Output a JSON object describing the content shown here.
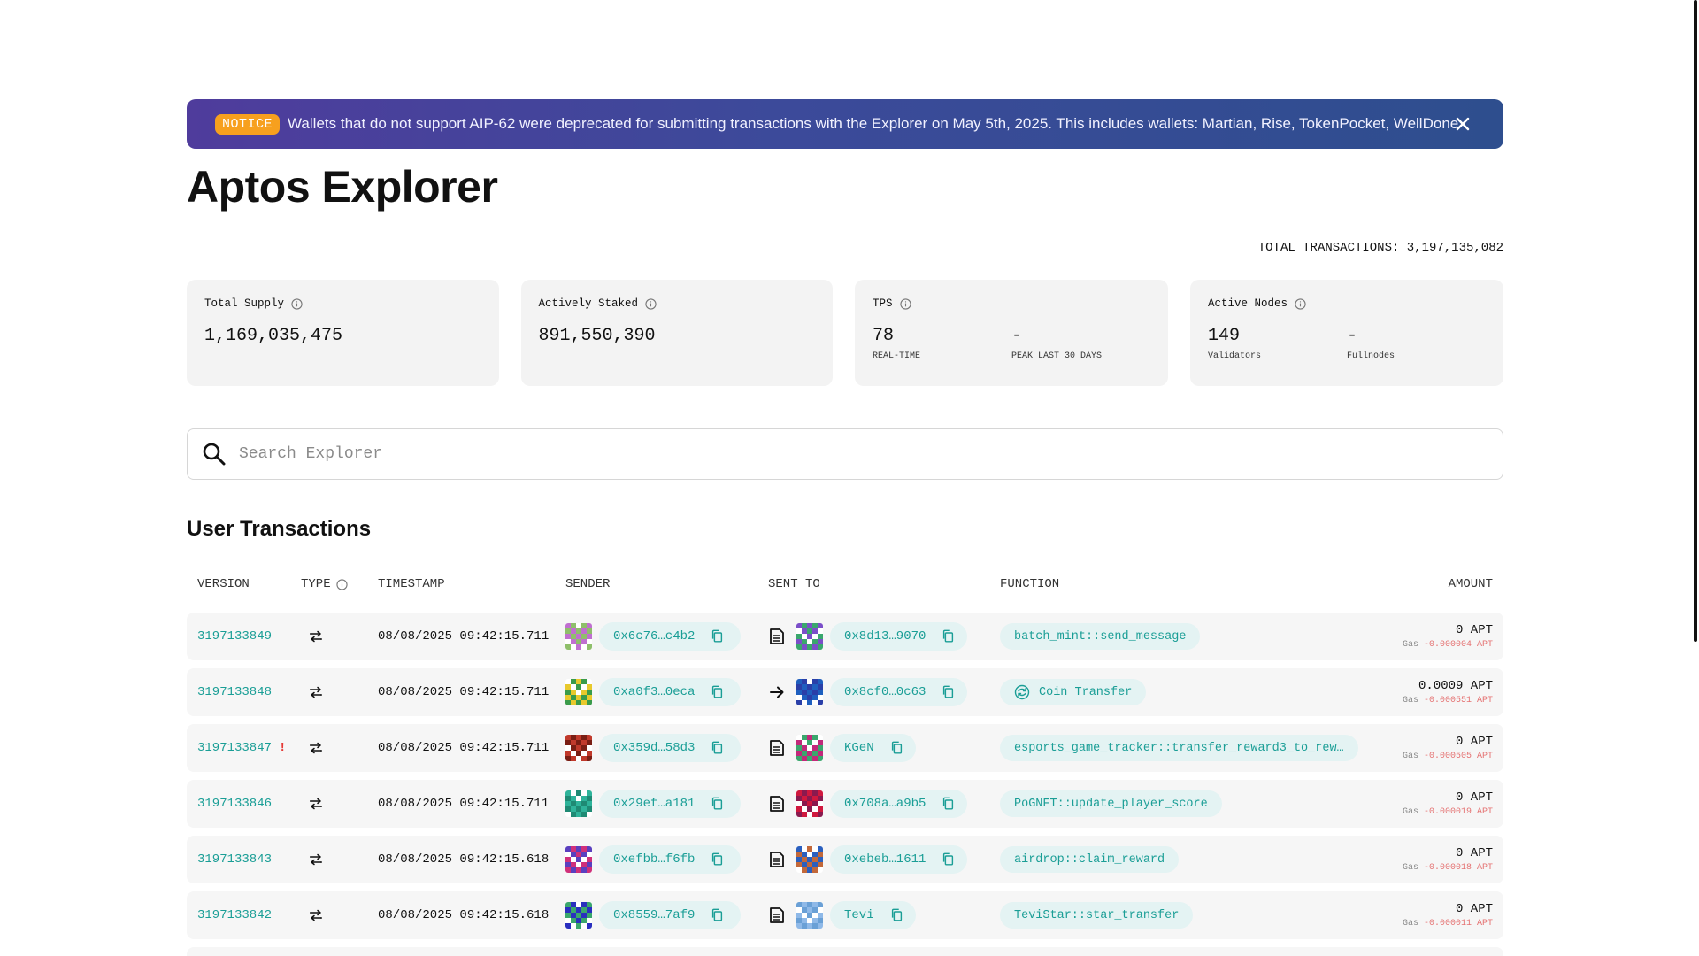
{
  "notice": {
    "badge": "NOTICE",
    "text": "Wallets that do not support AIP-62 were deprecated for submitting transactions with the Explorer on May 5th, 2025. This includes wallets: Martian, Rise, TokenPocket, WellDone",
    "close_icon": "close-icon"
  },
  "page_title": "Aptos Explorer",
  "total_transactions": "TOTAL TRANSACTIONS: 3,197,135,082",
  "stats": {
    "total_supply": {
      "label": "Total Supply",
      "value": "1,169,035,475"
    },
    "actively_staked": {
      "label": "Actively Staked",
      "value": "891,550,390"
    },
    "tps": {
      "label": "TPS",
      "realtime_value": "78",
      "realtime_label": "REAL-TIME",
      "peak_value": "-",
      "peak_label": "PEAK LAST 30 DAYS"
    },
    "active_nodes": {
      "label": "Active Nodes",
      "validators_value": "149",
      "validators_label": "Validators",
      "fullnodes_value": "-",
      "fullnodes_label": "Fullnodes"
    }
  },
  "search": {
    "placeholder": "Search Explorer",
    "icon": "search-icon"
  },
  "section_title": "User Transactions",
  "table": {
    "headers": {
      "version": "VERSION",
      "type": "TYPE",
      "timestamp": "TIMESTAMP",
      "sender": "SENDER",
      "sent_to": "SENT TO",
      "function": "FUNCTION",
      "amount": "AMOUNT"
    },
    "rows": [
      {
        "version": "3197133849",
        "failed": false,
        "timestamp": "08/08/2025 09:42:15.711",
        "sender": "0x6c76…c4b2",
        "sender_colors": [
          "#8fbf6a",
          "#c06fd0"
        ],
        "kind_icon": "document-icon",
        "sent_to": "0x8d13…9070",
        "sent_to_colors": [
          "#3aa76d",
          "#7b4fc9"
        ],
        "function": "batch_mint::send_message",
        "function_icon": "",
        "amount": "0 APT",
        "gas_label": "Gas",
        "gas": "-0.000004 APT"
      },
      {
        "version": "3197133848",
        "failed": false,
        "timestamp": "08/08/2025 09:42:15.711",
        "sender": "0xa0f3…0eca",
        "sender_colors": [
          "#e8c92c",
          "#3a9b4a"
        ],
        "kind_icon": "arrow-right-icon",
        "sent_to": "0x8cf0…0c63",
        "sent_to_colors": [
          "#2a3fa8",
          "#1f5fbf"
        ],
        "function": "Coin Transfer",
        "function_icon": "coin-transfer-icon",
        "amount": "0.0009 APT",
        "gas_label": "Gas",
        "gas": "-0.000551 APT"
      },
      {
        "version": "3197133847",
        "failed": true,
        "failed_mark": "!",
        "timestamp": "08/08/2025 09:42:15.711",
        "sender": "0x359d…58d3",
        "sender_colors": [
          "#c0392b",
          "#7a1e14"
        ],
        "kind_icon": "document-icon",
        "sent_to": "KGeN",
        "sent_to_colors": [
          "#c2287a",
          "#3aa76d"
        ],
        "function": "esports_game_tracker::transfer_reward3_to_rew…",
        "function_icon": "",
        "amount": "0 APT",
        "gas_label": "Gas",
        "gas": "-0.000505 APT"
      },
      {
        "version": "3197133846",
        "failed": false,
        "timestamp": "08/08/2025 09:42:15.711",
        "sender": "0x29ef…a181",
        "sender_colors": [
          "#2fb39a",
          "#1f8a74"
        ],
        "kind_icon": "document-icon",
        "sent_to": "0x708a…a9b5",
        "sent_to_colors": [
          "#d0183e",
          "#8a1a4f"
        ],
        "function": "PoGNFT::update_player_score",
        "function_icon": "",
        "amount": "0 APT",
        "gas_label": "Gas",
        "gas": "-0.000019 APT"
      },
      {
        "version": "3197133843",
        "failed": false,
        "timestamp": "08/08/2025 09:42:15.618",
        "sender": "0xefbb…f6fb",
        "sender_colors": [
          "#d0307a",
          "#5a3fbf"
        ],
        "kind_icon": "document-icon",
        "sent_to": "0xebeb…1611",
        "sent_to_colors": [
          "#2a5fbf",
          "#c2683a"
        ],
        "function": "airdrop::claim_reward",
        "function_icon": "",
        "amount": "0 APT",
        "gas_label": "Gas",
        "gas": "-0.000018 APT"
      },
      {
        "version": "3197133842",
        "failed": false,
        "timestamp": "08/08/2025 09:42:15.618",
        "sender": "0x8559…7af9",
        "sender_colors": [
          "#2a2fbf",
          "#3aa76d"
        ],
        "kind_icon": "document-icon",
        "sent_to": "Tevi",
        "sent_to_colors": [
          "#8fb9e8",
          "#6aa0d6"
        ],
        "function": "TeviStar::star_transfer",
        "function_icon": "",
        "amount": "0 APT",
        "gas_label": "Gas",
        "gas": "-0.000011 APT"
      }
    ]
  },
  "colors": {
    "accent": "#1a9e96",
    "notice_badge": "#f7a01e",
    "gas_negative": "#e57373",
    "error": "#e53935"
  }
}
